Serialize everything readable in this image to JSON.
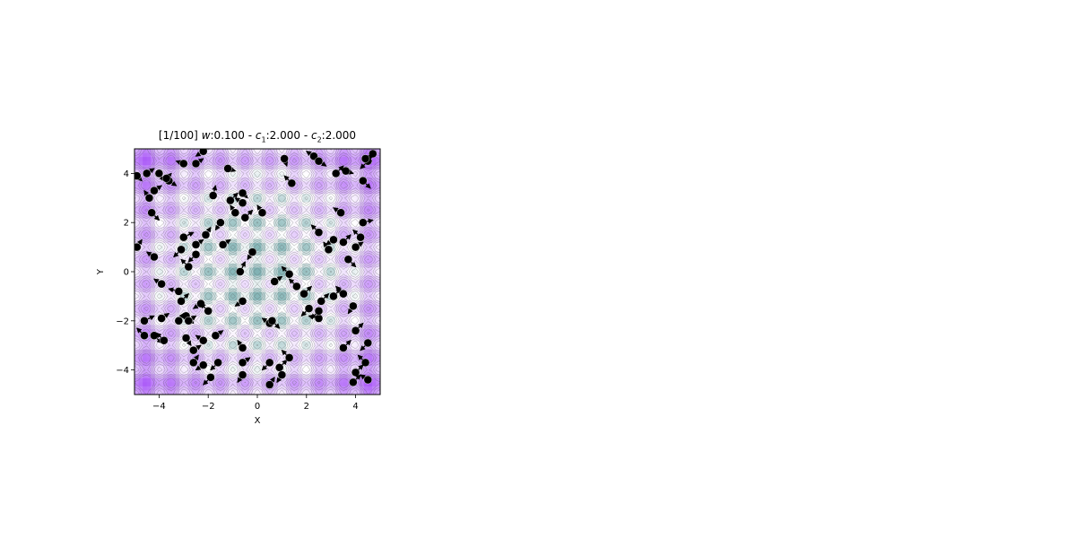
{
  "chart_data": {
    "type": "scatter",
    "title": {
      "prefix": "[1/100] ",
      "w_label": "w",
      "w_value": ":0.100",
      "sep1": " - ",
      "c1_label": "c",
      "c1_sub": "1",
      "c1_value": ":2.000",
      "sep2": " - ",
      "c2_label": "c",
      "c2_sub": "2",
      "c2_value": ":2.000"
    },
    "xlabel": "X",
    "ylabel": "Y",
    "xlim": [
      -5,
      5
    ],
    "ylim": [
      -5,
      5
    ],
    "xticks": [
      -4,
      -2,
      0,
      2,
      4
    ],
    "yticks": [
      -4,
      -2,
      0,
      2,
      4
    ],
    "xtick_labels": [
      "−4",
      "−2",
      "0",
      "2",
      "4"
    ],
    "ytick_labels": [
      "−4",
      "−2",
      "0",
      "2",
      "4"
    ],
    "grid": false,
    "background": "contour map of a multimodal (Rastrigin-like) function, minimum at (0, 0)",
    "colors": {
      "low": "#5f9ea0",
      "mid": "#ffffff",
      "high": "#a855f7",
      "contour": "#555555",
      "particle": "#000000"
    },
    "particles": [
      [
        -4.5,
        4.0,
        0.3,
        0.2
      ],
      [
        -4.0,
        4.0,
        0.2,
        -0.3
      ],
      [
        -3.6,
        3.7,
        0.3,
        -0.2
      ],
      [
        -3.0,
        4.4,
        -0.3,
        0.1
      ],
      [
        -2.2,
        4.9,
        -0.3,
        -0.2
      ],
      [
        -2.5,
        4.4,
        0.3,
        0.2
      ],
      [
        -4.9,
        3.9,
        0.2,
        -0.2
      ],
      [
        -4.2,
        3.3,
        0.3,
        0.2
      ],
      [
        -4.4,
        3.0,
        -0.2,
        0.3
      ],
      [
        -4.3,
        2.4,
        0.3,
        -0.3
      ],
      [
        -3.7,
        3.8,
        0.2,
        0.2
      ],
      [
        -1.2,
        4.2,
        0.3,
        -0.1
      ],
      [
        -1.8,
        3.1,
        0.1,
        0.4
      ],
      [
        -1.1,
        2.9,
        0.3,
        0.3
      ],
      [
        -0.6,
        2.8,
        -0.3,
        0.2
      ],
      [
        -0.6,
        3.2,
        0.2,
        -0.2
      ],
      [
        -0.9,
        2.4,
        -0.2,
        0.3
      ],
      [
        -1.5,
        2.0,
        -0.2,
        -0.3
      ],
      [
        -0.5,
        2.2,
        0.3,
        0.3
      ],
      [
        0.2,
        2.4,
        -0.2,
        0.3
      ],
      [
        1.1,
        4.6,
        0.1,
        -0.3
      ],
      [
        1.4,
        3.6,
        -0.3,
        0.3
      ],
      [
        2.3,
        4.7,
        -0.3,
        0.2
      ],
      [
        2.5,
        4.5,
        0.3,
        -0.2
      ],
      [
        3.6,
        4.1,
        0.3,
        -0.1
      ],
      [
        3.2,
        4.0,
        0.3,
        0.3
      ],
      [
        4.3,
        3.7,
        0.3,
        -0.3
      ],
      [
        4.5,
        4.5,
        -0.3,
        -0.3
      ],
      [
        4.7,
        4.8,
        -0.2,
        -0.4
      ],
      [
        4.4,
        4.6,
        0.3,
        0.1
      ],
      [
        3.4,
        2.4,
        -0.3,
        0.2
      ],
      [
        4.3,
        2.0,
        0.4,
        0.1
      ],
      [
        4.2,
        1.4,
        -0.3,
        0.3
      ],
      [
        3.5,
        1.2,
        0.3,
        0.3
      ],
      [
        4.0,
        1.0,
        0.3,
        0.2
      ],
      [
        3.1,
        1.3,
        -0.3,
        -0.2
      ],
      [
        2.9,
        0.9,
        -0.2,
        0.3
      ],
      [
        2.5,
        1.6,
        -0.3,
        0.3
      ],
      [
        3.7,
        0.5,
        0.3,
        -0.3
      ],
      [
        -4.9,
        1.0,
        0.2,
        0.3
      ],
      [
        -4.2,
        0.6,
        -0.3,
        0.2
      ],
      [
        -3.1,
        0.9,
        -0.3,
        -0.3
      ],
      [
        -2.5,
        0.7,
        -0.3,
        -0.3
      ],
      [
        -2.5,
        1.1,
        0.3,
        0.2
      ],
      [
        -3.0,
        1.4,
        0.4,
        0.2
      ],
      [
        -2.8,
        0.2,
        -0.3,
        0.3
      ],
      [
        -2.1,
        1.5,
        0.2,
        0.3
      ],
      [
        -1.4,
        1.1,
        0.3,
        0.2
      ],
      [
        -0.7,
        0.0,
        0.2,
        0.4
      ],
      [
        -0.2,
        0.8,
        -0.2,
        -0.3
      ],
      [
        -0.6,
        -1.2,
        -0.3,
        -0.2
      ],
      [
        1.3,
        -0.1,
        -0.3,
        0.3
      ],
      [
        0.7,
        -0.4,
        0.3,
        0.2
      ],
      [
        1.6,
        -0.6,
        -0.3,
        0.3
      ],
      [
        -3.9,
        -0.5,
        -0.3,
        0.2
      ],
      [
        -3.2,
        -0.8,
        -0.4,
        0.1
      ],
      [
        -3.1,
        -1.2,
        0.3,
        0.3
      ],
      [
        -2.3,
        -1.3,
        -0.3,
        -0.2
      ],
      [
        -2.0,
        -1.6,
        -0.3,
        0.3
      ],
      [
        -2.9,
        -1.8,
        0.3,
        -0.3
      ],
      [
        -3.2,
        -2.0,
        0.2,
        0.3
      ],
      [
        -2.8,
        -2.0,
        0.3,
        0.2
      ],
      [
        -3.9,
        -1.9,
        0.3,
        0.2
      ],
      [
        -4.2,
        -2.6,
        0.3,
        -0.3
      ],
      [
        -4.6,
        -2.6,
        -0.3,
        0.3
      ],
      [
        -4.6,
        -2.0,
        0.4,
        0.2
      ],
      [
        -3.8,
        -2.8,
        -0.3,
        0.3
      ],
      [
        -2.9,
        -2.7,
        0.2,
        -0.3
      ],
      [
        -2.2,
        -2.8,
        -0.3,
        0.2
      ],
      [
        -1.7,
        -2.6,
        0.3,
        0.2
      ],
      [
        -2.6,
        -3.2,
        0.3,
        0.2
      ],
      [
        -2.6,
        -3.7,
        0.2,
        0.3
      ],
      [
        -2.2,
        -3.8,
        -0.3,
        -0.2
      ],
      [
        -1.6,
        -3.7,
        -0.3,
        -0.3
      ],
      [
        -1.9,
        -4.3,
        -0.3,
        -0.3
      ],
      [
        -0.6,
        -3.1,
        -0.2,
        0.3
      ],
      [
        -0.6,
        -3.7,
        0.3,
        0.2
      ],
      [
        -0.6,
        -4.2,
        -0.2,
        -0.3
      ],
      [
        0.5,
        -2.1,
        -0.3,
        0.2
      ],
      [
        0.6,
        -2.0,
        0.3,
        -0.3
      ],
      [
        0.5,
        -3.7,
        -0.3,
        -0.3
      ],
      [
        0.9,
        -3.9,
        0.3,
        0.3
      ],
      [
        1.3,
        -3.5,
        -0.3,
        0.3
      ],
      [
        1.0,
        -4.2,
        -0.2,
        -0.3
      ],
      [
        0.5,
        -4.6,
        0.2,
        0.3
      ],
      [
        2.1,
        -1.5,
        -0.3,
        -0.3
      ],
      [
        2.5,
        -1.9,
        -0.4,
        0.1
      ],
      [
        2.6,
        -1.2,
        0.3,
        0.3
      ],
      [
        3.1,
        -1.0,
        0.3,
        0.3
      ],
      [
        3.5,
        -0.9,
        -0.3,
        0.3
      ],
      [
        3.9,
        -1.4,
        -0.2,
        -0.3
      ],
      [
        2.5,
        -1.6,
        -0.3,
        -0.3
      ],
      [
        1.9,
        -0.9,
        0.3,
        0.3
      ],
      [
        4.0,
        -2.4,
        0.3,
        0.3
      ],
      [
        4.5,
        -2.9,
        -0.3,
        -0.3
      ],
      [
        3.5,
        -3.1,
        0.3,
        0.3
      ],
      [
        4.4,
        -3.7,
        -0.3,
        0.3
      ],
      [
        4.0,
        -4.1,
        0.3,
        0.3
      ],
      [
        3.9,
        -4.5,
        0.3,
        0.3
      ],
      [
        4.5,
        -4.4,
        -0.3,
        0.2
      ]
    ]
  }
}
